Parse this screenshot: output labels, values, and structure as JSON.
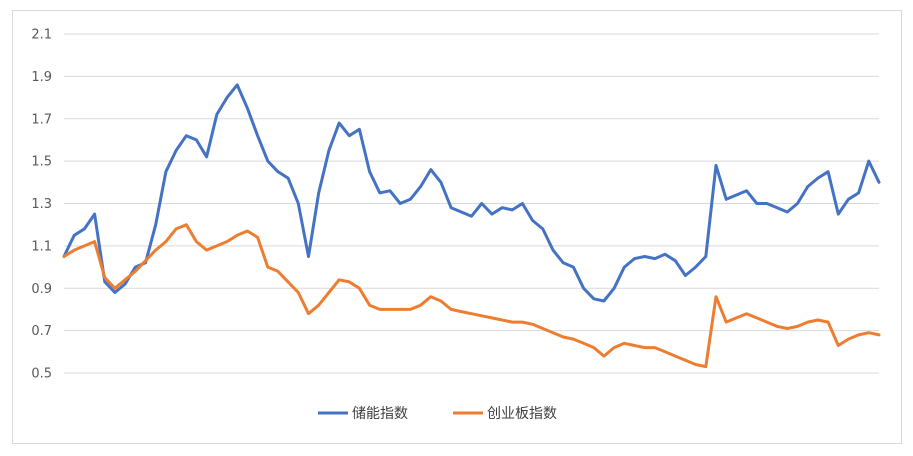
{
  "chart_data": {
    "type": "line",
    "title": "",
    "xlabel": "",
    "ylabel": "",
    "ylim": [
      0.5,
      2.1
    ],
    "yticks": [
      "2.1",
      "1.9",
      "1.7",
      "1.5",
      "1.3",
      "1.1",
      "0.9",
      "0.7",
      "0.5"
    ],
    "grid": "horizontal",
    "legend_position": "bottom",
    "x": [
      0,
      1,
      2,
      3,
      4,
      5,
      6,
      7,
      8,
      9,
      10,
      11,
      12,
      13,
      14,
      15,
      16,
      17,
      18,
      19,
      20,
      21,
      22,
      23,
      24,
      25,
      26,
      27,
      28,
      29,
      30,
      31,
      32,
      33,
      34,
      35,
      36,
      37,
      38,
      39,
      40,
      41,
      42,
      43,
      44,
      45,
      46,
      47,
      48,
      49,
      50,
      51,
      52,
      53,
      54,
      55,
      56,
      57,
      58,
      59,
      60,
      61,
      62,
      63,
      64,
      65,
      66,
      67,
      68,
      69,
      70,
      71,
      72,
      73,
      74,
      75,
      76,
      77,
      78,
      79,
      80
    ],
    "series": [
      {
        "name": "储能指数",
        "color": "#4472c4",
        "values": [
          1.05,
          1.15,
          1.18,
          1.25,
          0.93,
          0.88,
          0.92,
          1.0,
          1.02,
          1.2,
          1.45,
          1.55,
          1.62,
          1.6,
          1.52,
          1.72,
          1.8,
          1.86,
          1.75,
          1.62,
          1.5,
          1.45,
          1.42,
          1.3,
          1.05,
          1.35,
          1.55,
          1.68,
          1.62,
          1.65,
          1.45,
          1.35,
          1.36,
          1.3,
          1.32,
          1.38,
          1.46,
          1.4,
          1.28,
          1.26,
          1.24,
          1.3,
          1.25,
          1.28,
          1.27,
          1.3,
          1.22,
          1.18,
          1.08,
          1.02,
          1.0,
          0.9,
          0.85,
          0.84,
          0.9,
          1.0,
          1.04,
          1.05,
          1.04,
          1.06,
          1.03,
          0.96,
          1.0,
          1.05,
          1.48,
          1.32,
          1.34,
          1.36,
          1.3,
          1.3,
          1.28,
          1.26,
          1.3,
          1.38,
          1.42,
          1.45,
          1.25,
          1.32,
          1.35,
          1.5,
          1.4
        ]
      },
      {
        "name": "创业板指数",
        "color": "#ed7d31",
        "values": [
          1.05,
          1.08,
          1.1,
          1.12,
          0.95,
          0.9,
          0.94,
          0.98,
          1.03,
          1.08,
          1.12,
          1.18,
          1.2,
          1.12,
          1.08,
          1.1,
          1.12,
          1.15,
          1.17,
          1.14,
          1.0,
          0.98,
          0.93,
          0.88,
          0.78,
          0.82,
          0.88,
          0.94,
          0.93,
          0.9,
          0.82,
          0.8,
          0.8,
          0.8,
          0.8,
          0.82,
          0.86,
          0.84,
          0.8,
          0.79,
          0.78,
          0.77,
          0.76,
          0.75,
          0.74,
          0.74,
          0.73,
          0.71,
          0.69,
          0.67,
          0.66,
          0.64,
          0.62,
          0.58,
          0.62,
          0.64,
          0.63,
          0.62,
          0.62,
          0.6,
          0.58,
          0.56,
          0.54,
          0.53,
          0.86,
          0.74,
          0.76,
          0.78,
          0.76,
          0.74,
          0.72,
          0.71,
          0.72,
          0.74,
          0.75,
          0.74,
          0.63,
          0.66,
          0.68,
          0.69,
          0.68
        ]
      }
    ]
  }
}
